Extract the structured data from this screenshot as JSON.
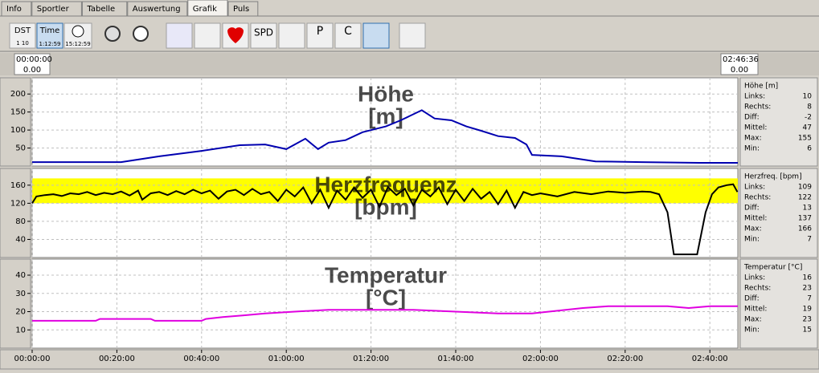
{
  "tabs": [
    "Info",
    "Sportler",
    "Tabelle",
    "Auswertung",
    "Grafik",
    "Puls"
  ],
  "active_tab": 4,
  "toolbar": {
    "dst": "DST",
    "dst_scale": "1  10",
    "time": "Time",
    "time_value": "1:12:59",
    "clock_value": "15:12:59",
    "spd": "SPD",
    "p": "P",
    "c": "C"
  },
  "range": {
    "start": "00:00:00",
    "start_value": "0.00",
    "end": "02:46:36",
    "end_value": "0.00"
  },
  "chart_data": [
    {
      "type": "line",
      "title": "Höhe",
      "unit": "[m]",
      "color": "#0000b0",
      "x": [
        0,
        21,
        30,
        40,
        49,
        55,
        60,
        64.5,
        67.5,
        70,
        74,
        78,
        83.5,
        87,
        92,
        95,
        99,
        102.5,
        106,
        110,
        114,
        116.7,
        118,
        125,
        133,
        144,
        157.5,
        166.6
      ],
      "values": [
        11,
        11,
        27,
        42,
        58,
        60,
        47,
        76,
        47,
        65,
        72,
        94,
        110,
        127,
        155,
        132,
        127,
        110,
        98,
        83,
        78,
        60,
        31,
        27,
        13,
        11,
        9,
        9
      ],
      "xlim": [
        0,
        166.6
      ],
      "ylim": [
        0,
        245
      ],
      "yticks": [
        50,
        100,
        150,
        200
      ],
      "grid": true,
      "stats": {
        "title": "Höhe [m]",
        "rows": [
          [
            "Links:",
            10
          ],
          [
            "Rechts:",
            8
          ],
          [
            "Diff:",
            -2
          ],
          [
            "Mittel:",
            47
          ],
          [
            "Max:",
            155
          ],
          [
            "Min:",
            6
          ]
        ]
      }
    },
    {
      "type": "line",
      "title": "Herzfrequenz",
      "unit": "[bpm]",
      "color": "#000000",
      "zone": [
        120,
        175
      ],
      "zone_color": "#ffff00",
      "x": [
        0,
        1,
        3,
        5,
        7,
        9,
        11,
        13,
        15,
        17,
        19,
        21,
        23,
        25,
        26,
        28,
        30,
        32,
        34,
        36,
        38,
        40,
        42,
        44,
        46,
        48,
        50,
        52,
        54,
        56,
        58,
        60,
        62,
        64,
        66,
        68,
        70,
        72,
        74,
        76,
        78,
        80,
        82,
        84,
        86,
        88,
        90,
        92,
        94,
        96,
        98,
        100,
        102,
        104,
        106,
        108,
        110,
        112,
        114,
        116,
        118,
        120,
        124,
        128,
        132,
        136,
        140,
        144,
        146,
        148,
        150,
        151.5,
        157,
        159,
        160.5,
        162,
        164,
        165.5,
        166.5
      ],
      "values": [
        120,
        135,
        138,
        140,
        136,
        142,
        140,
        145,
        138,
        143,
        140,
        146,
        137,
        148,
        128,
        142,
        145,
        138,
        147,
        140,
        150,
        142,
        148,
        130,
        146,
        150,
        138,
        152,
        140,
        145,
        125,
        150,
        135,
        155,
        120,
        150,
        110,
        148,
        128,
        155,
        132,
        150,
        112,
        156,
        138,
        152,
        115,
        150,
        135,
        155,
        118,
        150,
        125,
        152,
        130,
        145,
        118,
        148,
        110,
        145,
        138,
        142,
        135,
        145,
        140,
        146,
        143,
        146,
        145,
        140,
        100,
        7,
        7,
        100,
        140,
        155,
        160,
        162,
        145
      ],
      "xlim": [
        0,
        166.6
      ],
      "ylim": [
        0,
        197
      ],
      "yticks": [
        40,
        80,
        120,
        160
      ],
      "grid": true,
      "stats": {
        "title": "Herzfreq. [bpm]",
        "rows": [
          [
            "Links:",
            109
          ],
          [
            "Rechts:",
            122
          ],
          [
            "Diff:",
            13
          ],
          [
            "Mittel:",
            137
          ],
          [
            "Max:",
            166
          ],
          [
            "Min:",
            7
          ]
        ]
      }
    },
    {
      "type": "line",
      "title": "Temperatur",
      "unit": "[°C]",
      "color": "#e000e0",
      "x": [
        0,
        15,
        16,
        28,
        29,
        40,
        41,
        45,
        50,
        55,
        62,
        70,
        90,
        100,
        110,
        118,
        122,
        130,
        136,
        150,
        155,
        160,
        166.6
      ],
      "values": [
        15,
        15,
        16,
        16,
        15,
        15,
        16,
        17,
        18,
        19,
        20,
        21,
        21,
        20,
        19,
        19,
        20,
        22,
        23,
        23,
        22,
        23,
        23
      ],
      "xlim": [
        0,
        166.6
      ],
      "ylim": [
        0,
        48.8
      ],
      "yticks": [
        10,
        20,
        30,
        40
      ],
      "grid": true,
      "xticks": [
        {
          "value": 0,
          "label": "00:00:00"
        },
        {
          "value": 20,
          "label": "00:20:00"
        },
        {
          "value": 40,
          "label": "00:40:00"
        },
        {
          "value": 60,
          "label": "01:00:00"
        },
        {
          "value": 80,
          "label": "01:20:00"
        },
        {
          "value": 100,
          "label": "01:40:00"
        },
        {
          "value": 120,
          "label": "02:00:00"
        },
        {
          "value": 140,
          "label": "02:20:00"
        },
        {
          "value": 160,
          "label": "02:40:00"
        }
      ],
      "stats": {
        "title": "Temperatur [°C]",
        "rows": [
          [
            "Links:",
            16
          ],
          [
            "Rechts:",
            23
          ],
          [
            "Diff:",
            7
          ],
          [
            "Mittel:",
            19
          ],
          [
            "Max:",
            23
          ],
          [
            "Min:",
            15
          ]
        ]
      }
    }
  ]
}
